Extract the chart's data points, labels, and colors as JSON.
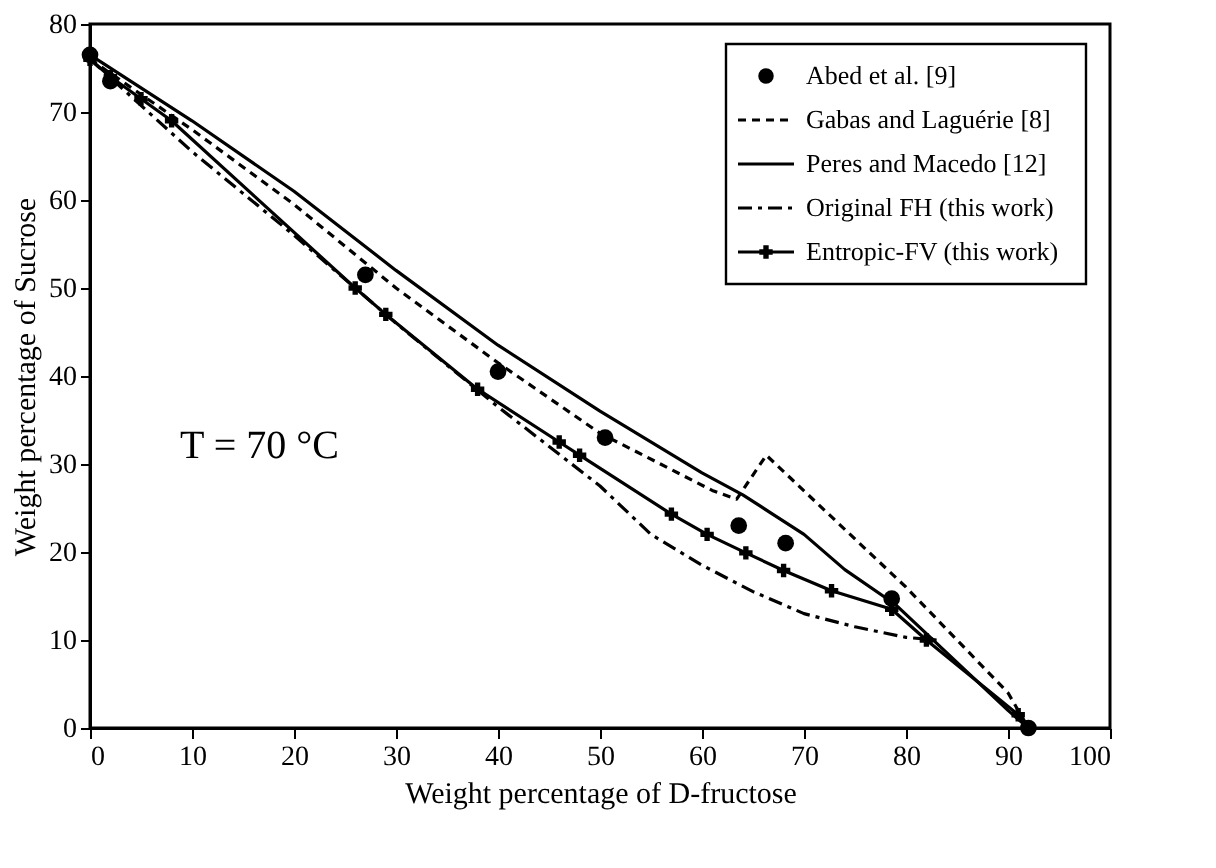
{
  "chart_data": {
    "type": "line",
    "xlabel": "Weight percentage of D-fructose",
    "ylabel": "Weight percentage of Sucrose",
    "xlim": [
      0,
      100
    ],
    "ylim": [
      0,
      80
    ],
    "xticks": [
      0,
      10,
      20,
      30,
      40,
      50,
      60,
      70,
      80,
      90,
      100
    ],
    "yticks": [
      0,
      10,
      20,
      30,
      40,
      50,
      60,
      70,
      80
    ],
    "grid": false,
    "legend": "top right",
    "annotations": [
      "T = 70 °C"
    ],
    "series": [
      {
        "name": "Abed et al. [9]",
        "type": "scatter",
        "marker": "circle",
        "color": "#000000",
        "x": [
          0,
          2,
          27,
          40,
          50.5,
          63.6,
          68.2,
          78.6,
          92
        ],
        "values": [
          76.5,
          73.5,
          51.5,
          40.5,
          33,
          23,
          21,
          14.7,
          0
        ]
      },
      {
        "name": "Gabas and Laguérie [8]",
        "line_style": "dashed",
        "marker": "none",
        "color": "#000000",
        "x": [
          0,
          10,
          20,
          30,
          40,
          50,
          61,
          63.4,
          66.3,
          80,
          90,
          92
        ],
        "values": [
          76,
          68,
          59.5,
          50,
          41.5,
          33.5,
          27,
          26,
          31,
          16,
          4,
          0
        ]
      },
      {
        "name": "Peres and Macedo [12]",
        "line_style": "solid",
        "marker": "none",
        "color": "#000000",
        "x": [
          0,
          10,
          20,
          30,
          40,
          50,
          60,
          64,
          70,
          74,
          79,
          90,
          92
        ],
        "values": [
          76.5,
          69,
          61,
          52,
          43.5,
          36,
          29,
          26.5,
          22,
          18,
          14,
          2,
          0
        ]
      },
      {
        "name": "Original FH (this work)",
        "line_style": "dashdot",
        "marker": "none",
        "color": "#000000",
        "x": [
          0,
          10,
          20,
          30,
          40,
          50,
          55,
          60,
          65,
          70,
          75,
          80,
          83
        ],
        "values": [
          76,
          65.5,
          56,
          46,
          36.5,
          27.5,
          22,
          18.5,
          15.5,
          13,
          11.5,
          10.3,
          10
        ]
      },
      {
        "name": "Entropic-FV (this work)",
        "line_style": "solid",
        "marker": "cross",
        "color": "#000000",
        "x": [
          0,
          2,
          5,
          8,
          26,
          29,
          38,
          46,
          48,
          57,
          60.5,
          64.3,
          68,
          72.7,
          78.6,
          82,
          91,
          92
        ],
        "values": [
          76,
          74,
          71.5,
          69,
          50,
          47,
          38.5,
          32.5,
          31,
          24.3,
          22,
          19.9,
          17.9,
          15.6,
          13.5,
          10,
          1.5,
          0
        ]
      }
    ]
  }
}
